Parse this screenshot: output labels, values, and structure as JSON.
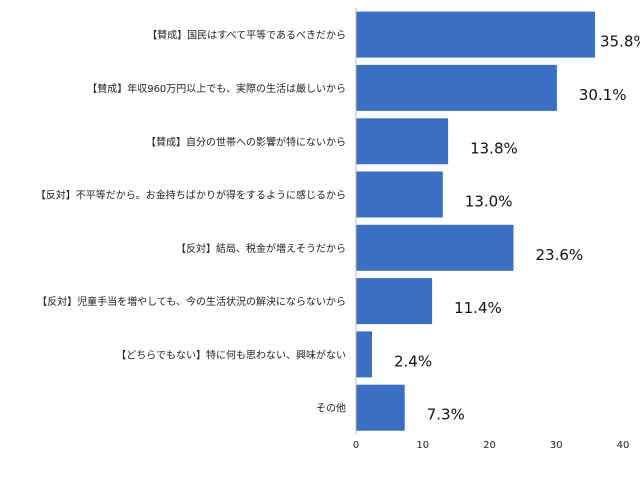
{
  "chart_data": {
    "type": "bar",
    "orientation": "horizontal",
    "categories": [
      "【賛成】国民はすべて平等であるべきだから",
      "【賛成】年収960万円以上でも、実際の生活は厳しいから",
      "【賛成】自分の世帯への影響が特にないから",
      "【反対】不平等だから。お金持ちばかりが得をするように感じるから",
      "【反対】結局、税金が増えそうだから",
      "【反対】児童手当を増やしても、今の生活状況の解決にならないから",
      "【どちらでもない】特に何も思わない、興味がない",
      "その他"
    ],
    "values": [
      35.8,
      30.1,
      13.8,
      13.0,
      23.6,
      11.4,
      2.4,
      7.3
    ],
    "value_labels": [
      "35.8%",
      "30.1%",
      "13.8%",
      "13.0%",
      "23.6%",
      "11.4%",
      "2.4%",
      "7.3%"
    ],
    "xlim": [
      0,
      40
    ],
    "xticks": [
      "0",
      "10",
      "20",
      "30",
      "40"
    ],
    "grid": false,
    "bar_color": "#3a6fc4",
    "title": "",
    "xlabel": "",
    "ylabel": ""
  }
}
